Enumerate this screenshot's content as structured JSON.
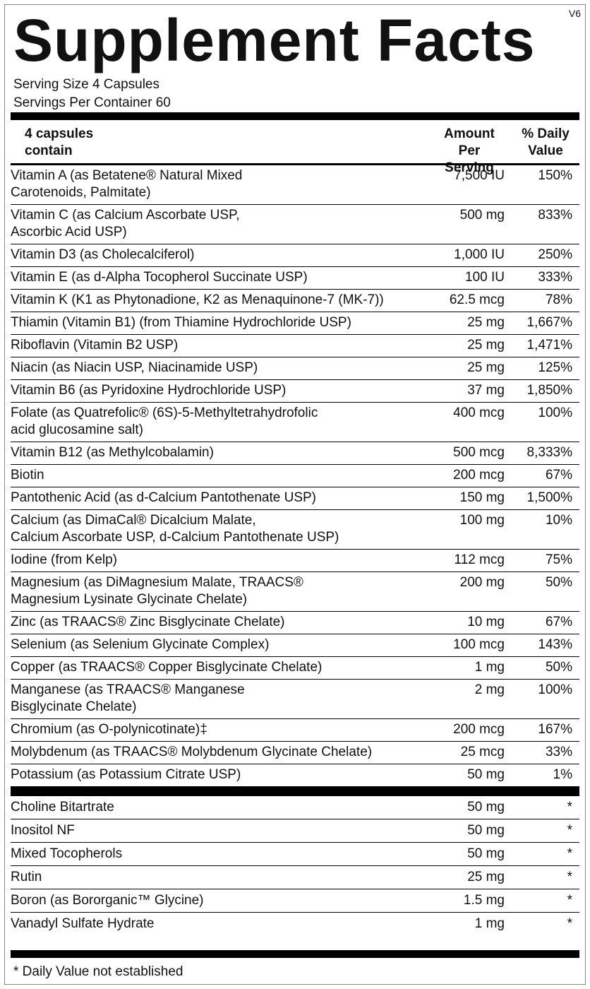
{
  "header": {
    "title": "Supplement Facts",
    "version": "V6"
  },
  "serving": {
    "size": "Serving Size 4 Capsules",
    "per_container": "Servings Per Container 60"
  },
  "columns": [
    "4 capsules\ncontain",
    "Amount\nPer Serving",
    "% Daily\nValue"
  ],
  "rows": [
    [
      "Vitamin A (as Betatene® Natural Mixed\nCarotenoids, Palmitate)",
      "7,500 IU",
      "150%"
    ],
    [
      "Vitamin C (as Calcium Ascorbate USP,\nAscorbic Acid USP)",
      "500 mg",
      "833%"
    ],
    [
      "Vitamin D3 (as Cholecalciferol)",
      "1,000 IU",
      "250%"
    ],
    [
      "Vitamin E (as d-Alpha Tocopherol Succinate USP)",
      "100 IU",
      "333%"
    ],
    [
      "Vitamin K (K1 as Phytonadione, K2 as Menaquinone-7 (MK-7))",
      "62.5 mcg",
      "78%"
    ],
    [
      "Thiamin (Vitamin B1) (from Thiamine Hydrochloride USP)",
      "25 mg",
      "1,667%"
    ],
    [
      "Riboflavin (Vitamin B2 USP)",
      "25 mg",
      "1,471%"
    ],
    [
      "Niacin (as Niacin USP, Niacinamide USP)",
      "25 mg",
      "125%"
    ],
    [
      "Vitamin B6 (as Pyridoxine Hydrochloride USP)",
      "37 mg",
      "1,850%"
    ],
    [
      "Folate (as Quatrefolic® (6S)-5-Methyltetrahydrofolic\nacid glucosamine salt)",
      "400 mcg",
      "100%"
    ],
    [
      "Vitamin B12 (as Methylcobalamin)",
      "500 mcg",
      "8,333%"
    ],
    [
      "Biotin",
      "200 mcg",
      "67%"
    ],
    [
      "Pantothenic Acid (as d-Calcium Pantothenate USP)",
      "150 mg",
      "1,500%"
    ],
    [
      "Calcium (as DimaCal® Dicalcium Malate,\nCalcium Ascorbate USP, d-Calcium Pantothenate USP)",
      "100 mg",
      "10%"
    ],
    [
      "Iodine (from Kelp)",
      "112 mcg",
      "75%"
    ],
    [
      "Magnesium (as DiMagnesium Malate, TRAACS®\nMagnesium Lysinate Glycinate Chelate)",
      "200 mg",
      "50%"
    ],
    [
      "Zinc (as TRAACS® Zinc Bisglycinate Chelate)",
      "10 mg",
      "67%"
    ],
    [
      "Selenium (as Selenium Glycinate Complex)",
      "100 mcg",
      "143%"
    ],
    [
      "Copper (as TRAACS® Copper Bisglycinate Chelate)",
      "1 mg",
      "50%"
    ],
    [
      "Manganese (as TRAACS® Manganese\nBisglycinate Chelate)",
      "2 mg",
      "100%"
    ],
    [
      "Chromium (as O-polynicotinate)‡",
      "200 mcg",
      "167%"
    ],
    [
      "Molybdenum (as TRAACS® Molybdenum Glycinate Chelate)",
      "25 mcg",
      "33%"
    ],
    [
      "Potassium  (as Potassium Citrate USP)",
      "50 mg",
      "1%"
    ]
  ],
  "other_rows": [
    [
      "Choline Bitartrate",
      "50 mg",
      "*"
    ],
    [
      "Inositol NF",
      "50 mg",
      "*"
    ],
    [
      "Mixed Tocopherols",
      "50 mg",
      "*"
    ],
    [
      "Rutin",
      "25 mg",
      "*"
    ],
    [
      "Boron (as Bororganic™ Glycine)",
      "1.5 mg",
      "*"
    ],
    [
      "Vanadyl Sulfate Hydrate",
      "1 mg",
      "*"
    ]
  ],
  "footnote": "* Daily Value not established"
}
